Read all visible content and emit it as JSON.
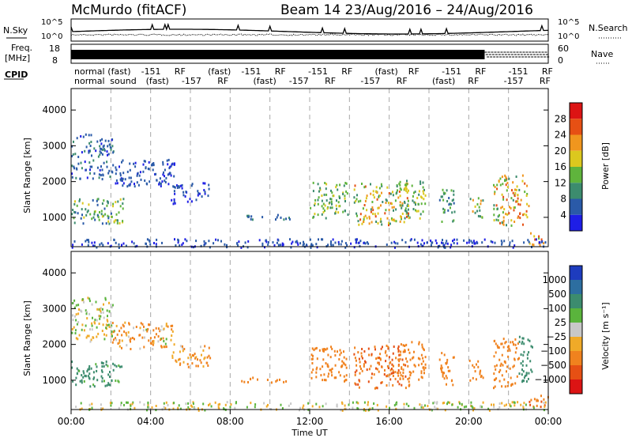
{
  "header": {
    "station": "McMurdo (fitACF)",
    "beam_info": "Beam 14 23/Aug/2016 – 24/Aug/2016"
  },
  "noise_panel": {
    "left_label": "N.Sky",
    "left_ticks": [
      "10^5",
      "10^0"
    ],
    "right_label": "N.Search",
    "right_ticks": [
      "10^5",
      "10^0"
    ]
  },
  "freq_panel": {
    "left_label_1": "Freq.",
    "left_label_2": "[MHz]",
    "left_ticks": [
      "18",
      "8"
    ],
    "right_label": "Nave",
    "right_ticks": [
      "60",
      "0"
    ]
  },
  "cpid_panel": {
    "label": "CPID",
    "row1": [
      "normal",
      "(fast)",
      "-151",
      "RF",
      "(fast)",
      "-151",
      "RF",
      "-151",
      "RF",
      "(fast)",
      "RF",
      "-151",
      "RF",
      "-151",
      "RF"
    ],
    "row2": [
      "normal",
      "sound",
      "(fast)",
      "-157",
      "RF",
      "(fast)",
      "-157",
      "RF",
      "-157",
      "RF",
      "(fast)",
      "RF",
      "-157",
      "RF"
    ]
  },
  "time_axis": {
    "label": "Time UT",
    "ticks": [
      "00:00",
      "04:00",
      "08:00",
      "12:00",
      "16:00",
      "20:00",
      "00:00"
    ]
  },
  "chart_data": [
    {
      "type": "heatmap",
      "panel": "power",
      "ylabel": "Slant Range [km]",
      "yticks": [
        1000,
        2000,
        3000,
        4000
      ],
      "ylim": [
        180,
        4600
      ],
      "xlim_hours": [
        0,
        24
      ],
      "colorbar": {
        "label": "Power [dB]",
        "ticks": [
          "4",
          "8",
          "12",
          "16",
          "20",
          "24",
          "28"
        ],
        "colors": [
          "#1e1ee6",
          "#2a5aa8",
          "#3c8c6e",
          "#5fb43c",
          "#dcc81e",
          "#f0961e",
          "#e65014",
          "#dc1414"
        ]
      },
      "scatter_regions": [
        {
          "t": [
            0.0,
            2.1
          ],
          "r": [
            2100,
            3350
          ],
          "v": [
            3,
            10
          ]
        },
        {
          "t": [
            0.0,
            2.6
          ],
          "r": [
            850,
            1550
          ],
          "v": [
            6,
            18
          ]
        },
        {
          "t": [
            2.0,
            5.2
          ],
          "r": [
            1900,
            2650
          ],
          "v": [
            2,
            8
          ]
        },
        {
          "t": [
            5.0,
            7.0
          ],
          "r": [
            1400,
            2000
          ],
          "v": [
            2,
            6
          ]
        },
        {
          "t": [
            8.5,
            11.0
          ],
          "r": [
            950,
            1100
          ],
          "v": [
            4,
            10
          ]
        },
        {
          "t": [
            12.0,
            13.9
          ],
          "r": [
            1000,
            2000
          ],
          "v": [
            8,
            18
          ]
        },
        {
          "t": [
            14.2,
            17.0
          ],
          "r": [
            800,
            2000
          ],
          "v": [
            10,
            26
          ]
        },
        {
          "t": [
            16.5,
            17.8
          ],
          "r": [
            1000,
            2100
          ],
          "v": [
            8,
            20
          ]
        },
        {
          "t": [
            18.5,
            19.3
          ],
          "r": [
            900,
            1800
          ],
          "v": [
            6,
            16
          ]
        },
        {
          "t": [
            20.0,
            20.7
          ],
          "r": [
            1000,
            1600
          ],
          "v": [
            8,
            22
          ]
        },
        {
          "t": [
            21.2,
            23.0
          ],
          "r": [
            800,
            2200
          ],
          "v": [
            10,
            28
          ]
        },
        {
          "t": [
            23.0,
            24.0
          ],
          "r": [
            250,
            600
          ],
          "v": [
            14,
            30
          ]
        },
        {
          "t": [
            0.0,
            24.0
          ],
          "r": [
            180,
            420
          ],
          "v": [
            2,
            8
          ]
        }
      ]
    },
    {
      "type": "heatmap",
      "panel": "velocity",
      "ylabel": "Slant Range [km]",
      "yticks": [
        1000,
        2000,
        3000,
        4000
      ],
      "ylim": [
        180,
        4600
      ],
      "xlim_hours": [
        0,
        24
      ],
      "colorbar": {
        "label": "Velocity [m s⁻¹]",
        "ticks": [
          "1000",
          "500",
          "100",
          "25",
          "−25",
          "−100",
          "−500",
          "−1000"
        ],
        "colors": [
          "#1e3cbe",
          "#2d6ea0",
          "#3c8c6e",
          "#5ab43c",
          "#c8c8c8",
          "#f0aa28",
          "#f0821e",
          "#e65014",
          "#dc1414"
        ]
      },
      "scatter_regions": [
        {
          "t": [
            0.0,
            2.1
          ],
          "r": [
            2100,
            3350
          ],
          "v": [
            -100,
            100
          ]
        },
        {
          "t": [
            0.0,
            2.6
          ],
          "r": [
            850,
            1550
          ],
          "v": [
            60,
            300
          ]
        },
        {
          "t": [
            2.0,
            5.2
          ],
          "r": [
            1900,
            2650
          ],
          "v": [
            -300,
            50
          ]
        },
        {
          "t": [
            5.0,
            7.0
          ],
          "r": [
            1400,
            2000
          ],
          "v": [
            -200,
            0
          ]
        },
        {
          "t": [
            8.5,
            11.0
          ],
          "r": [
            950,
            1100
          ],
          "v": [
            -250,
            -80
          ]
        },
        {
          "t": [
            12.0,
            13.9
          ],
          "r": [
            1000,
            2000
          ],
          "v": [
            -450,
            -120
          ]
        },
        {
          "t": [
            14.2,
            17.0
          ],
          "r": [
            800,
            2000
          ],
          "v": [
            -700,
            -150
          ]
        },
        {
          "t": [
            16.5,
            17.8
          ],
          "r": [
            1000,
            2100
          ],
          "v": [
            -500,
            -100
          ]
        },
        {
          "t": [
            18.5,
            19.3
          ],
          "r": [
            900,
            1800
          ],
          "v": [
            -400,
            -100
          ]
        },
        {
          "t": [
            20.0,
            20.7
          ],
          "r": [
            1000,
            1600
          ],
          "v": [
            -500,
            -100
          ]
        },
        {
          "t": [
            21.2,
            22.5
          ],
          "r": [
            800,
            2200
          ],
          "v": [
            -500,
            -100
          ]
        },
        {
          "t": [
            22.5,
            23.2
          ],
          "r": [
            900,
            2300
          ],
          "v": [
            150,
            500
          ]
        },
        {
          "t": [
            23.0,
            24.0
          ],
          "r": [
            250,
            600
          ],
          "v": [
            -800,
            -200
          ]
        },
        {
          "t": [
            0.0,
            24.0
          ],
          "r": [
            180,
            420
          ],
          "v": [
            -100,
            100
          ]
        }
      ]
    }
  ]
}
